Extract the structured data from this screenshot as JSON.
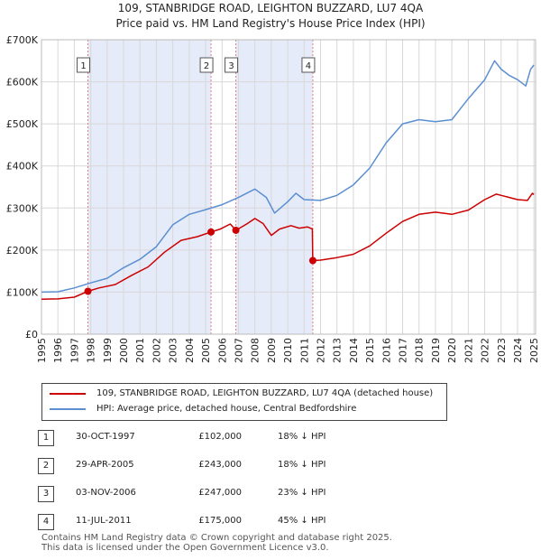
{
  "title_line1": "109, STANBRIDGE ROAD, LEIGHTON BUZZARD, LU7 4QA",
  "title_line2": "Price paid vs. HM Land Registry's House Price Index (HPI)",
  "chart_data": {
    "type": "line",
    "xlim": [
      1995,
      2025.1
    ],
    "ylim": [
      0,
      700000
    ],
    "y_ticks": [
      0,
      100000,
      200000,
      300000,
      400000,
      500000,
      600000,
      700000
    ],
    "y_tick_labels": [
      "£0",
      "£100K",
      "£200K",
      "£300K",
      "£400K",
      "£500K",
      "£600K",
      "£700K"
    ],
    "x_ticks": [
      1995,
      1996,
      1997,
      1998,
      1999,
      2000,
      2001,
      2002,
      2003,
      2004,
      2005,
      2006,
      2007,
      2008,
      2009,
      2010,
      2011,
      2012,
      2013,
      2014,
      2015,
      2016,
      2017,
      2018,
      2019,
      2020,
      2021,
      2022,
      2023,
      2024,
      2025
    ],
    "shaded_periods": [
      [
        1997.83,
        2005.33
      ],
      [
        2006.84,
        2011.53
      ]
    ],
    "series": [
      {
        "name": "109, STANBRIDGE ROAD, LEIGHTON BUZZARD, LU7 4QA (detached house)",
        "color": "#cc0000",
        "points": [
          [
            1995,
            83000
          ],
          [
            1996,
            84000
          ],
          [
            1997,
            88000
          ],
          [
            1997.83,
            102000
          ],
          [
            1998.5,
            110000
          ],
          [
            1999.5,
            118000
          ],
          [
            2000.5,
            140000
          ],
          [
            2001.5,
            160000
          ],
          [
            2002.5,
            195000
          ],
          [
            2003.5,
            223000
          ],
          [
            2004.5,
            232000
          ],
          [
            2005.33,
            243000
          ],
          [
            2005.9,
            250000
          ],
          [
            2006.5,
            262000
          ],
          [
            2006.84,
            247000
          ],
          [
            2007.5,
            262000
          ],
          [
            2008,
            275000
          ],
          [
            2008.5,
            263000
          ],
          [
            2009,
            235000
          ],
          [
            2009.5,
            250000
          ],
          [
            2010.2,
            258000
          ],
          [
            2010.7,
            252000
          ],
          [
            2011.2,
            255000
          ],
          [
            2011.5,
            250000
          ],
          [
            2011.53,
            175000
          ],
          [
            2012,
            176000
          ],
          [
            2013,
            182000
          ],
          [
            2014,
            190000
          ],
          [
            2015,
            210000
          ],
          [
            2016,
            240000
          ],
          [
            2017,
            268000
          ],
          [
            2018,
            285000
          ],
          [
            2019,
            290000
          ],
          [
            2020,
            285000
          ],
          [
            2021,
            295000
          ],
          [
            2022,
            320000
          ],
          [
            2022.7,
            333000
          ],
          [
            2023,
            330000
          ],
          [
            2023.5,
            325000
          ],
          [
            2024,
            320000
          ],
          [
            2024.6,
            318000
          ],
          [
            2024.9,
            335000
          ],
          [
            2025,
            332000
          ]
        ]
      },
      {
        "name": "HPI: Average price, detached house, Central Bedfordshire",
        "color": "#5b8fd0",
        "points": [
          [
            1995,
            100000
          ],
          [
            1996,
            101000
          ],
          [
            1997,
            110000
          ],
          [
            1998,
            122000
          ],
          [
            1999,
            133000
          ],
          [
            2000,
            158000
          ],
          [
            2001,
            178000
          ],
          [
            2002,
            208000
          ],
          [
            2003,
            260000
          ],
          [
            2004,
            285000
          ],
          [
            2005,
            296000
          ],
          [
            2006,
            308000
          ],
          [
            2007,
            325000
          ],
          [
            2008,
            345000
          ],
          [
            2008.7,
            325000
          ],
          [
            2009.2,
            288000
          ],
          [
            2010,
            315000
          ],
          [
            2010.5,
            335000
          ],
          [
            2011,
            320000
          ],
          [
            2012,
            318000
          ],
          [
            2013,
            330000
          ],
          [
            2014,
            355000
          ],
          [
            2015,
            395000
          ],
          [
            2016,
            455000
          ],
          [
            2017,
            500000
          ],
          [
            2018,
            510000
          ],
          [
            2019,
            505000
          ],
          [
            2020,
            510000
          ],
          [
            2021,
            560000
          ],
          [
            2022,
            605000
          ],
          [
            2022.6,
            650000
          ],
          [
            2023,
            630000
          ],
          [
            2023.5,
            615000
          ],
          [
            2024,
            605000
          ],
          [
            2024.5,
            590000
          ],
          [
            2024.8,
            630000
          ],
          [
            2025,
            640000
          ]
        ]
      }
    ],
    "sales": [
      {
        "label": "1",
        "x": 1997.83,
        "y": 102000
      },
      {
        "label": "2",
        "x": 2005.33,
        "y": 243000
      },
      {
        "label": "3",
        "x": 2006.84,
        "y": 247000
      },
      {
        "label": "4",
        "x": 2011.53,
        "y": 175000
      }
    ]
  },
  "legend": {
    "property_label": "109, STANBRIDGE ROAD, LEIGHTON BUZZARD, LU7 4QA (detached house)",
    "hpi_label": "HPI: Average price, detached house, Central Bedfordshire",
    "property_color": "#cc0000",
    "hpi_color": "#5b8fd0"
  },
  "transactions": [
    {
      "num": "1",
      "date": "30-OCT-1997",
      "price": "£102,000",
      "hpi": "18% ↓ HPI"
    },
    {
      "num": "2",
      "date": "29-APR-2005",
      "price": "£243,000",
      "hpi": "18% ↓ HPI"
    },
    {
      "num": "3",
      "date": "03-NOV-2006",
      "price": "£247,000",
      "hpi": "23% ↓ HPI"
    },
    {
      "num": "4",
      "date": "11-JUL-2011",
      "price": "£175,000",
      "hpi": "45% ↓ HPI"
    }
  ],
  "footer_line1": "Contains HM Land Registry data © Crown copyright and database right 2025.",
  "footer_line2": "This data is licensed under the Open Government Licence v3.0."
}
